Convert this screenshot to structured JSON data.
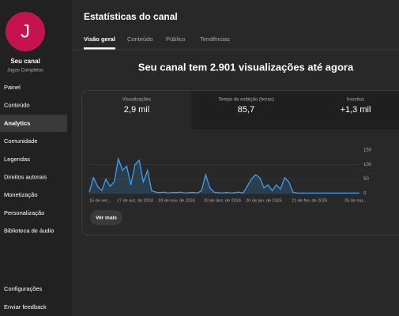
{
  "sidebar": {
    "channel_initial": "J",
    "channel_name": "Seu canal",
    "channel_subtitle": "Jogos Completos",
    "menu": [
      {
        "label": "Painel"
      },
      {
        "label": "Conteúdo"
      },
      {
        "label": "Analytics",
        "active": true
      },
      {
        "label": "Comunidade"
      },
      {
        "label": "Legendas"
      },
      {
        "label": "Direitos autorais"
      },
      {
        "label": "Monetização"
      },
      {
        "label": "Personalização"
      },
      {
        "label": "Biblioteca de áudio"
      }
    ],
    "bottom_menu": [
      "Configurações",
      "Enviar feedback"
    ]
  },
  "header": {
    "title": "Estatísticas do canal",
    "tabs": [
      {
        "label": "Visão geral",
        "active": true
      },
      {
        "label": "Conteúdo"
      },
      {
        "label": "Público"
      },
      {
        "label": "Tendências"
      }
    ]
  },
  "headline": "Seu canal tem 2.901 visualizações até agora",
  "metrics": [
    {
      "label": "Visualizações",
      "value": "2,9 mil",
      "active": true
    },
    {
      "label": "Tempo de exibição (horas)",
      "value": "85,7"
    },
    {
      "label": "Inscritos",
      "value": "+1,3 mil"
    }
  ],
  "chart_data": {
    "type": "line",
    "color": "#3ea6ff",
    "grid": true,
    "categories": [
      "15 de set...",
      null,
      null,
      null,
      null,
      null,
      null,
      null,
      null,
      null,
      null,
      "17 de out. de 2024",
      null,
      null,
      null,
      null,
      null,
      null,
      null,
      null,
      null,
      "18 de nov. de 2024",
      null,
      null,
      null,
      null,
      null,
      null,
      null,
      null,
      null,
      null,
      "20 de dez. de 2024",
      null,
      null,
      null,
      null,
      null,
      null,
      null,
      null,
      null,
      "20 de jan. de 2025",
      null,
      null,
      null,
      null,
      null,
      null,
      null,
      null,
      null,
      null,
      "21 de fev. de 2025",
      null,
      null,
      null,
      null,
      null,
      null,
      null,
      null,
      null,
      null,
      "25 de ma...",
      null
    ],
    "values": [
      5,
      55,
      25,
      10,
      50,
      25,
      40,
      120,
      80,
      95,
      30,
      100,
      115,
      40,
      80,
      10,
      5,
      3,
      5,
      2,
      4,
      3,
      5,
      2,
      3,
      4,
      2,
      10,
      65,
      20,
      5,
      3,
      2,
      4,
      2,
      3,
      5,
      2,
      25,
      50,
      65,
      55,
      20,
      30,
      10,
      30,
      15,
      55,
      40,
      5,
      2,
      2,
      2,
      2,
      2,
      2,
      2,
      2,
      2,
      2,
      2,
      2,
      2,
      2,
      2,
      2
    ],
    "ylim": [
      0,
      150
    ],
    "yticks": [
      0,
      50,
      100,
      150
    ]
  },
  "button": "Ver mais"
}
